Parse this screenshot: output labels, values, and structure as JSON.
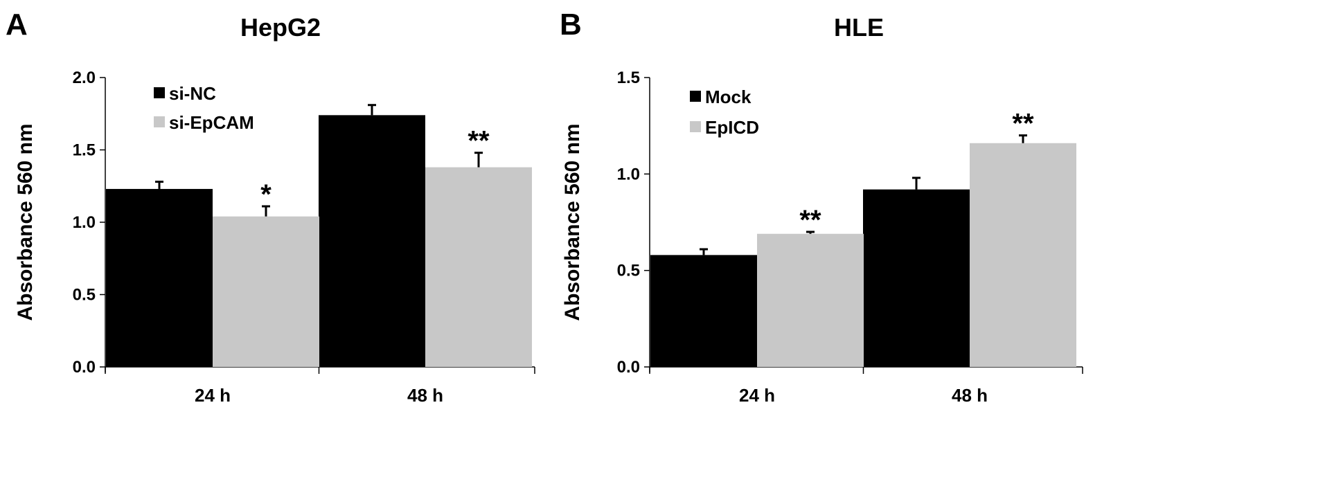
{
  "chart_data": [
    {
      "type": "bar",
      "panel": "A",
      "title": "HepG2",
      "xlabel": "",
      "ylabel": "Absorbance 560 nm",
      "ylim": [
        0,
        2.0
      ],
      "yticks": [
        "0.0",
        "0.5",
        "1.0",
        "1.5",
        "2.0"
      ],
      "categories": [
        "24 h",
        "48 h"
      ],
      "grid": false,
      "legend_position": "top-left",
      "series": [
        {
          "name": "si-NC",
          "color": "#000000",
          "values": [
            1.23,
            1.74
          ],
          "errors": [
            0.05,
            0.07
          ],
          "significance": [
            "",
            ""
          ]
        },
        {
          "name": "si-EpCAM",
          "color": "#c8c8c8",
          "values": [
            1.04,
            1.38
          ],
          "errors": [
            0.07,
            0.1
          ],
          "significance": [
            "*",
            "**"
          ]
        }
      ]
    },
    {
      "type": "bar",
      "panel": "B",
      "title": "HLE",
      "xlabel": "",
      "ylabel": "Absorbance 560 nm",
      "ylim": [
        0,
        1.5
      ],
      "yticks": [
        "0.0",
        "0.5",
        "1.0",
        "1.5"
      ],
      "categories": [
        "24 h",
        "48 h"
      ],
      "grid": false,
      "legend_position": "top-left",
      "series": [
        {
          "name": "Mock",
          "color": "#000000",
          "values": [
            0.58,
            0.92
          ],
          "errors": [
            0.03,
            0.06
          ],
          "significance": [
            "",
            ""
          ]
        },
        {
          "name": "EpICD",
          "color": "#c8c8c8",
          "values": [
            0.69,
            1.16
          ],
          "errors": [
            0.01,
            0.04
          ],
          "significance": [
            "**",
            "**"
          ]
        }
      ]
    }
  ]
}
